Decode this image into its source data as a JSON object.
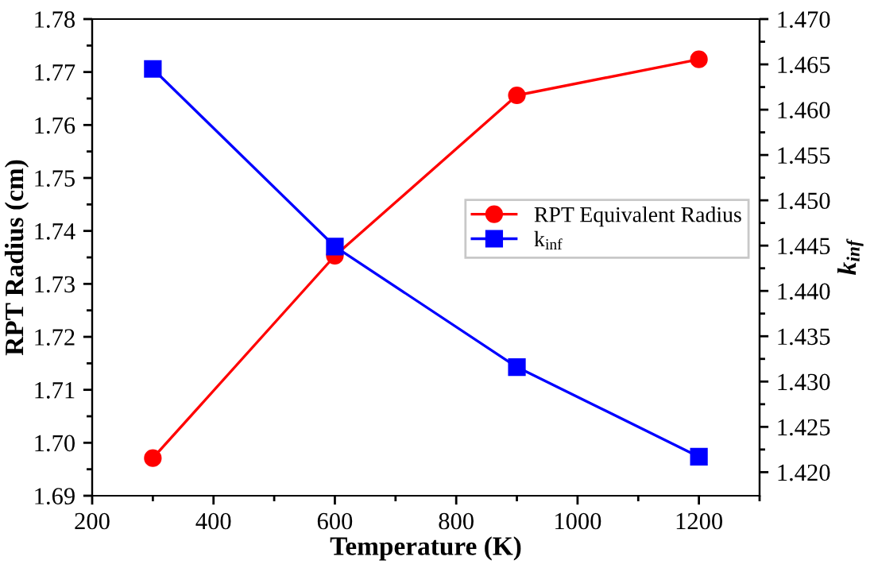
{
  "chart_data": {
    "type": "line",
    "xlabel": "Temperature (K)",
    "ylabel": "RPT Radius (cm)",
    "y2label": "k$_{inf}$",
    "x": [
      300,
      600,
      900,
      1200
    ],
    "series": [
      {
        "name": "RPT Equivalent Radius",
        "color": "#ff0000",
        "marker": "circle",
        "values": [
          1.6971,
          1.7353,
          1.7656,
          1.7724
        ]
      },
      {
        "name": "k$_{inf}$",
        "color": "#0000ff",
        "marker": "square",
        "axis": "y2",
        "values": [
          1.4645,
          1.4449,
          1.4316,
          1.4217
        ]
      }
    ],
    "xlim": [
      200,
      1300
    ],
    "xticks": [
      200,
      400,
      600,
      800,
      1000,
      1200
    ],
    "ylim": [
      1.69,
      1.78
    ],
    "yticks": [
      1.69,
      {
        "value": 1.7,
        "label": "1.70"
      },
      1.71,
      1.72,
      1.73,
      1.74,
      1.75,
      1.76,
      1.77,
      1.78
    ],
    "y2lim": [
      1.4174,
      1.47
    ],
    "y2ticks": [
      {
        "value": 1.42,
        "label": "1.420"
      },
      1.425,
      {
        "value": 1.43,
        "label": "1.430"
      },
      1.435,
      {
        "value": 1.44,
        "label": "1.440"
      },
      1.445,
      {
        "value": 1.45,
        "label": "1.450"
      },
      1.455,
      {
        "value": 1.46,
        "label": "1.460"
      },
      1.465,
      {
        "value": 1.47,
        "label": "1.470"
      }
    ],
    "legend": "center right",
    "grid": false,
    "line_style": "solid"
  }
}
